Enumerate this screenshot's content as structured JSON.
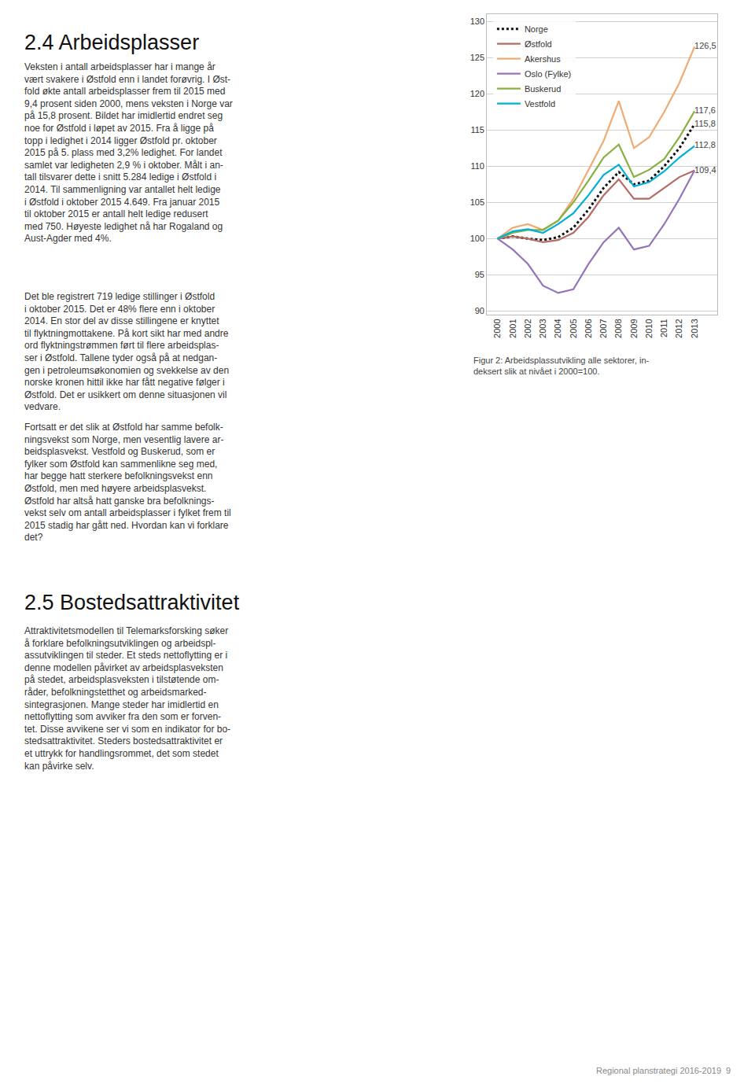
{
  "chart_data": {
    "type": "line",
    "x": [
      2000,
      2001,
      2002,
      2003,
      2004,
      2005,
      2006,
      2007,
      2008,
      2009,
      2010,
      2011,
      2012,
      2013
    ],
    "xlim": [
      1999.3,
      2014.5
    ],
    "xticks": [
      2000,
      2001,
      2002,
      2003,
      2004,
      2005,
      2006,
      2007,
      2008,
      2009,
      2010,
      2011,
      2012,
      2013
    ],
    "ylim": [
      89.5,
      131.0
    ],
    "yticks": [
      90,
      95,
      100,
      105,
      110,
      115,
      120,
      125,
      130
    ],
    "grid": true,
    "legend": "upper left",
    "series": [
      {
        "name": "Norge",
        "color": "#111111",
        "line_style": "dotted",
        "values": [
          100.0,
          100.3,
          100.0,
          99.8,
          100.2,
          101.5,
          104.0,
          107.0,
          109.2,
          107.5,
          108.0,
          110.0,
          112.5,
          115.8
        ],
        "value_labels": [
          null,
          null,
          null,
          null,
          null,
          null,
          null,
          null,
          null,
          null,
          null,
          null,
          null,
          "115,8"
        ]
      },
      {
        "name": "Østfold",
        "color": "#b56b65",
        "line_style": "solid",
        "values": [
          100.0,
          100.3,
          100.0,
          99.5,
          99.8,
          100.8,
          103.0,
          106.0,
          108.2,
          105.5,
          105.5,
          107.0,
          108.5,
          109.4
        ],
        "value_labels": [
          null,
          null,
          null,
          null,
          null,
          null,
          null,
          null,
          null,
          null,
          null,
          null,
          null,
          "109,4"
        ]
      },
      {
        "name": "Akershus",
        "color": "#f0ab72",
        "line_style": "solid",
        "values": [
          100.0,
          101.5,
          102.0,
          101.2,
          102.5,
          105.5,
          109.5,
          113.5,
          119.0,
          112.5,
          114.0,
          117.5,
          121.5,
          126.5
        ],
        "value_labels": [
          null,
          null,
          null,
          null,
          null,
          null,
          null,
          null,
          null,
          null,
          null,
          null,
          null,
          "126,5"
        ]
      },
      {
        "name": "Oslo (Fylke)",
        "color": "#9575b8",
        "line_style": "solid",
        "values": [
          100.0,
          98.5,
          96.5,
          93.5,
          92.5,
          93.0,
          96.5,
          99.5,
          101.5,
          98.5,
          99.0,
          102.0,
          105.5,
          109.4
        ]
      },
      {
        "name": "Buskerud",
        "color": "#87b040",
        "line_style": "solid",
        "values": [
          100.0,
          100.8,
          101.2,
          101.2,
          102.5,
          105.0,
          108.0,
          111.2,
          113.0,
          108.5,
          109.5,
          111.0,
          114.0,
          117.6
        ],
        "value_labels": [
          null,
          null,
          null,
          null,
          null,
          null,
          null,
          null,
          null,
          null,
          null,
          null,
          null,
          "117,6"
        ]
      },
      {
        "name": "Vestfold",
        "color": "#00afd5",
        "line_style": "solid",
        "values": [
          100.0,
          101.0,
          101.3,
          100.8,
          102.0,
          103.5,
          106.0,
          108.8,
          110.2,
          107.2,
          107.8,
          109.3,
          111.2,
          112.8
        ],
        "value_labels": [
          null,
          null,
          null,
          null,
          null,
          null,
          null,
          null,
          null,
          null,
          null,
          null,
          null,
          "112,8"
        ]
      }
    ],
    "annotations": [
      "2.4 Arbeidsplasser",
      "Veksten i antall arbeidsplasser har i mange år\nvært svakere i Østfold enn i landet forøvrig. I Øst-\nfold økte antall arbeidsplasser frem til 2015 med\n9,4 prosent siden 2000, mens veksten i Norge var\npå 15,8 prosent. Bildet har imidlertid endret seg\nnoe for Østfold i løpet av 2015. Fra å ligge på\ntopp i ledighet i 2014 ligger Østfold pr. oktober\n2015 på 5. plass med 3,2% ledighet. For landet\nsamlet var ledigheten 2,9 % i oktober. Målt i an-\ntall tilsvarer dette i snitt 5.284 ledige i Østfold i\n2014. Til sammenligning var antallet helt ledige\ni Østfold i oktober 2015 4.649. Fra januar 2015\ntil oktober 2015 er antall helt ledige redusert\nmed 750. Høyeste ledighet nå har Rogaland og\nAust-Agder med 4%.",
      "Det ble registrert 719 ledige stillinger i Østfold\ni oktober 2015. Det er 48% flere enn i oktober\n2014. En stor del av disse stillingene er knyttet\ntil flyktningmottakene. På kort sikt har med andre\nord flyktningstrømmen ført til flere arbeidsplas-\nser i Østfold. Tallene tyder også på at nedgan-\ngen i petroleumsøkonomien og svekkelse av den\nnorske kronen hittil ikke har fått negative følger i\nØstfold. Det er usikkert om denne situasjonen vil\nvedvare.",
      "Fortsatt er det slik at Østfold har samme befolk-\nningsvekst som Norge, men vesentlig lavere ar-\nbeidsplasvekst. Vestfold og Buskerud, som er\nfylker som Østfold kan sammenlikne seg med,\nhar begge hatt sterkere befolkningsvekst enn\nØstfold, men med høyere arbeidsplasvekst.\nØstfold har altså hatt ganske bra befolknings-\nvekst selv om antall arbeidsplasser i fylket frem til\n2015 stadig har gått ned. Hvordan kan vi forklare\ndet?",
      "2.5 Bostedsattraktivitet",
      "Attraktivitetsmodellen til Telemarksforsking søker\nå forklare befolkningsutviklingen og arbeidspl-\nassutviklingen til steder. Et steds nettoflytting er i\ndenne modellen påvirket av arbeidsplasveksten\npå stedet, arbeidsplasveksten i tilstøtende om-\nråder, befolkningstetthet og arbeidsmarked-\nsintegrasjonen. Mange steder har imidlertid en\nnettoflytting som avviker fra den som er forven-\ntet. Disse avvikene ser vi som en indikator for bo-\nstedsattraktivitet. Steders bostedsattraktivitet er\net uttrykk for handlingsrommet, det som stedet\nkan påvirke selv.",
      "Regional planstrategi 2016-2019  9",
      "Figur 2: Arbeidsplassutvikling alle sektorer, in-\ndeksert slik at nivået i 2000=100."
    ]
  }
}
